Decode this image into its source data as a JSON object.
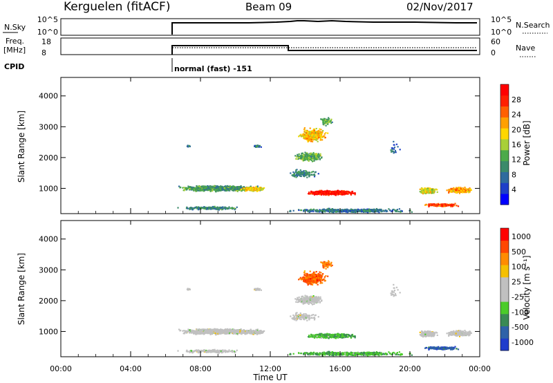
{
  "header": {
    "station": "Kerguelen (fitACF)",
    "beam": "Beam 09",
    "date": "02/Nov/2017"
  },
  "top_panels": {
    "nsky": {
      "left_label": "N.Sky",
      "right_label": "N.Search",
      "left_ticks": [
        "10^5",
        "10^0"
      ],
      "right_ticks": [
        "10^5",
        "10^0"
      ]
    },
    "freq": {
      "left_label_1": "Freq.",
      "left_label_2": "[MHz]",
      "right_label": "Nave",
      "left_ticks": [
        "18",
        "8"
      ],
      "right_ticks": [
        "60",
        "0"
      ]
    },
    "cpid": {
      "label": "CPID",
      "mode_text": "normal (fast) -151"
    }
  },
  "chart_data": [
    {
      "type": "heatmap",
      "name": "power",
      "ylabel": "Slant Range [km]",
      "xlabel": "",
      "xlim_hours": [
        0,
        24
      ],
      "ylim": [
        180,
        4600
      ],
      "yticks": [
        1000,
        2000,
        3000,
        4000
      ],
      "colorbar": {
        "label": "Power [dB]",
        "ticks": [
          "28",
          "24",
          "20",
          "16",
          "12",
          "8",
          "4"
        ],
        "colors": [
          "#0000ff",
          "#1e3fc8",
          "#2f6b9e",
          "#3b8a6a",
          "#4caa4a",
          "#a8d038",
          "#ffd700",
          "#ffa000",
          "#ff6000",
          "#ff2000",
          "#ff0000"
        ]
      }
    },
    {
      "type": "heatmap",
      "name": "velocity",
      "ylabel": "Slant Range [km]",
      "xlabel": "Time UT",
      "xlim_hours": [
        0,
        24
      ],
      "ylim": [
        180,
        4600
      ],
      "yticks": [
        1000,
        2000,
        3000,
        4000
      ],
      "xticks": [
        "00:00",
        "04:00",
        "08:00",
        "12:00",
        "16:00",
        "20:00",
        "00:00"
      ],
      "colorbar": {
        "label": "Velocity [m s⁻¹]",
        "ticks": [
          "1000",
          "500",
          "100",
          "25",
          "-25",
          "-100",
          "-500",
          "-1000"
        ],
        "colors": [
          "#1f3ccc",
          "#2f62a8",
          "#3a8a55",
          "#4bcc2a",
          "#c0c0c0",
          "#c0c0c0",
          "#f5c000",
          "#ff8c00",
          "#ff4800",
          "#ff0000"
        ]
      }
    }
  ]
}
